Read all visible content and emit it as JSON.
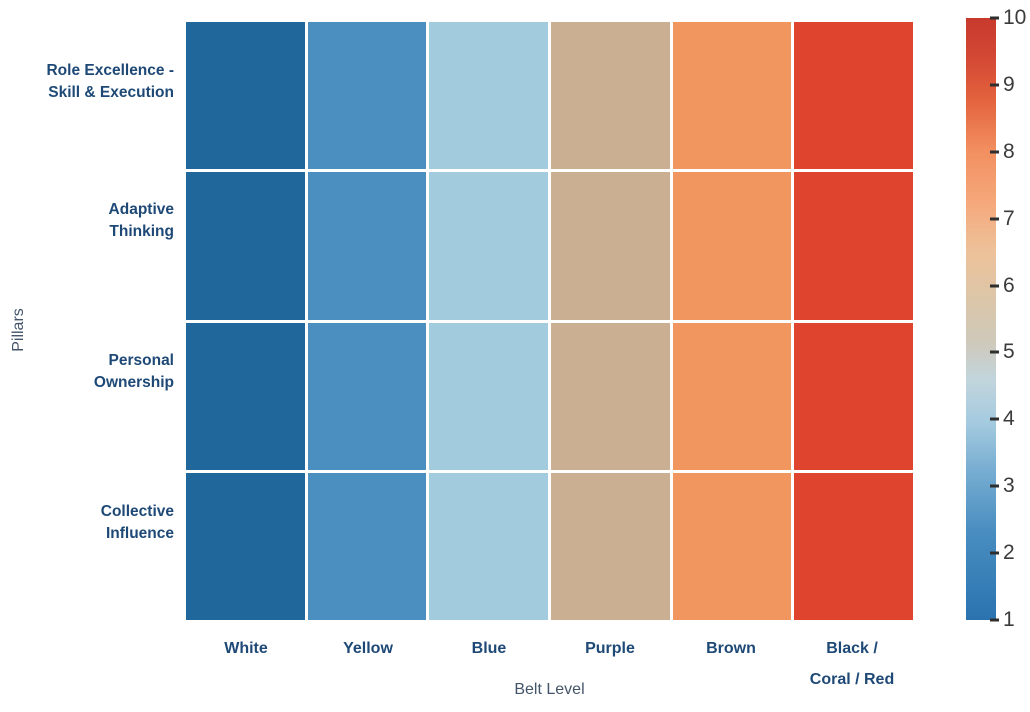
{
  "chart_data": {
    "type": "heatmap",
    "title": "",
    "xlabel": "Belt Level",
    "ylabel": "Pillars",
    "x_categories": [
      "White",
      "Yellow",
      "Blue",
      "Purple",
      "Brown",
      "Black / Coral / Red"
    ],
    "y_categories": [
      "Role Excellence - Skill & Execution",
      "Adaptive Thinking",
      "Personal Ownership",
      "Collective Influence"
    ],
    "matrix": [
      [
        1,
        2.8,
        4.6,
        6.4,
        8.2,
        10
      ],
      [
        1,
        2.8,
        4.6,
        6.4,
        8.2,
        10
      ],
      [
        1,
        2.8,
        4.6,
        6.4,
        8.2,
        10
      ],
      [
        1,
        2.8,
        4.6,
        6.4,
        8.2,
        10
      ]
    ],
    "cell_colors": [
      "#20689B",
      "#4B8FC0",
      "#A3CBDE",
      "#CBAF93",
      "#F2965F",
      "#DF442F"
    ],
    "colorbar": {
      "min": 1,
      "max": 10,
      "ticks": [
        1,
        2,
        3,
        4,
        5,
        6,
        7,
        8,
        9,
        10
      ],
      "position": "right",
      "gradient_bottom_to_top": [
        "#2B73B0",
        "#4A8EC0",
        "#A5CBDF",
        "#DBC6A9",
        "#F5A97C",
        "#C83A2C"
      ]
    },
    "grid": false,
    "legend": "none"
  },
  "y_axis": {
    "title": "Pillars",
    "labels": [
      {
        "line1": "Role Excellence -",
        "line2": "Skill & Execution"
      },
      {
        "line1": "Adaptive",
        "line2": "Thinking"
      },
      {
        "line1": "Personal",
        "line2": "Ownership"
      },
      {
        "line1": "Collective",
        "line2": "Influence"
      }
    ]
  },
  "x_axis": {
    "title": "Belt Level",
    "labels": [
      {
        "line1": "White",
        "line2": ""
      },
      {
        "line1": "Yellow",
        "line2": ""
      },
      {
        "line1": "Blue",
        "line2": ""
      },
      {
        "line1": "Purple",
        "line2": ""
      },
      {
        "line1": "Brown",
        "line2": ""
      },
      {
        "line1": "Black /",
        "line2": "Coral / Red"
      }
    ]
  },
  "colorbar_tick_labels": [
    "10",
    "9",
    "8",
    "7",
    "6",
    "5",
    "4",
    "3",
    "2",
    "1"
  ],
  "colors": {
    "tick_label": "#1E4976",
    "axis_title": "#44546A",
    "colorbar_label": "#3B3B3B",
    "background": "#FFFFFF"
  }
}
